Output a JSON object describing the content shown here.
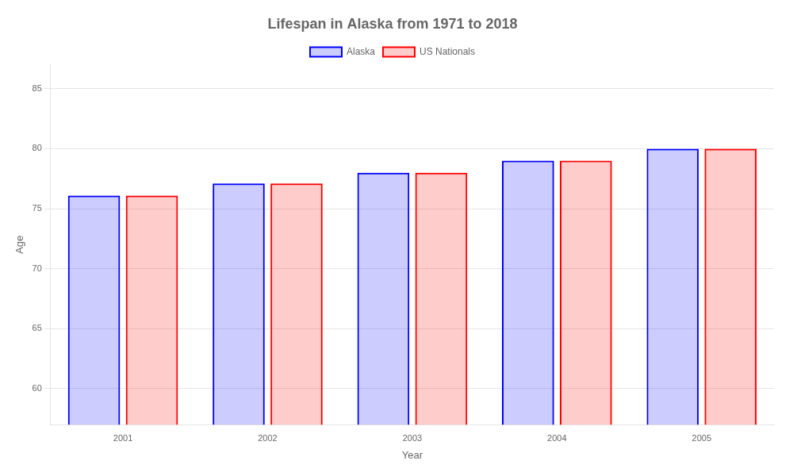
{
  "chart_data": {
    "type": "bar",
    "title": "Lifespan in Alaska from 1971 to 2018",
    "xlabel": "Year",
    "ylabel": "Age",
    "categories": [
      "2001",
      "2002",
      "2003",
      "2004",
      "2005"
    ],
    "series": [
      {
        "name": "Alaska",
        "color": "#0000FF",
        "values": [
          76.1,
          77.1,
          78.0,
          79.0,
          80.0
        ]
      },
      {
        "name": "US Nationals",
        "color": "#FF0000",
        "values": [
          76.1,
          77.1,
          78.0,
          79.0,
          80.0
        ]
      }
    ],
    "ylim": [
      57,
      87
    ],
    "yticks": [
      60,
      65,
      70,
      75,
      80,
      85
    ],
    "grid": true,
    "legend": "top"
  }
}
